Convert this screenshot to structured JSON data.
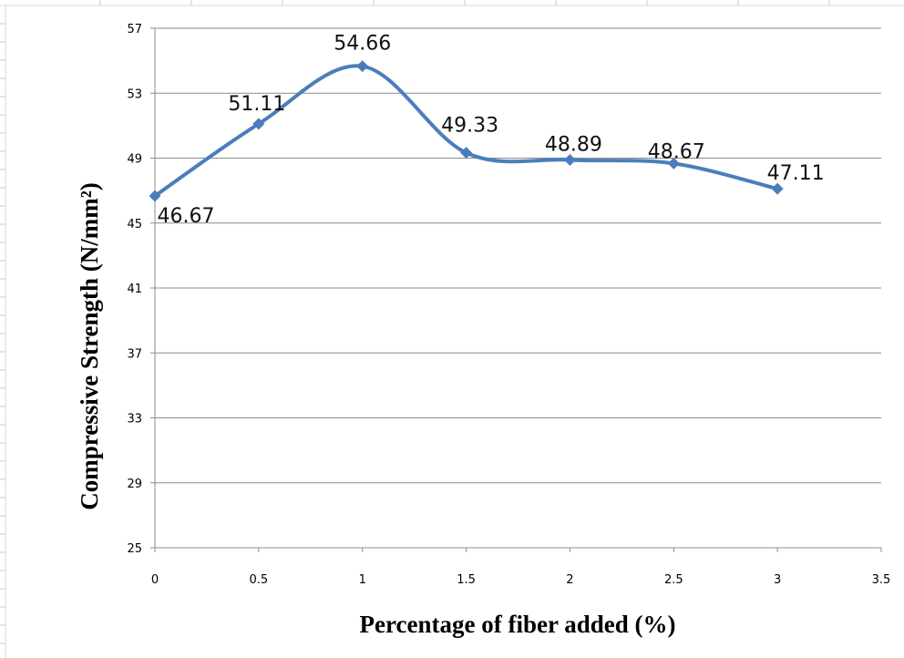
{
  "chart_data": {
    "type": "line",
    "title": "",
    "xlabel": "Percentage of fiber added (%)",
    "ylabel": "Compressive Strength (N/mm²)",
    "xlim": [
      0,
      3.5
    ],
    "ylim": [
      25,
      57
    ],
    "x_ticks": [
      "0",
      "0.5",
      "1",
      "1.5",
      "2",
      "2.5",
      "3",
      "3.5"
    ],
    "y_ticks": [
      "25",
      "29",
      "33",
      "37",
      "41",
      "45",
      "49",
      "53",
      "57"
    ],
    "grid": "horizontal",
    "legend": "none",
    "smooth": true,
    "series": [
      {
        "color": "#4a7ebb",
        "x": [
          0,
          0.5,
          1,
          1.5,
          2,
          2.5,
          3
        ],
        "values": [
          46.67,
          51.11,
          54.66,
          49.33,
          48.89,
          48.67,
          47.11
        ],
        "labels": [
          "46.67",
          "51.11",
          "54.66",
          "49.33",
          "48.89",
          "48.67",
          "47.11"
        ]
      }
    ]
  }
}
